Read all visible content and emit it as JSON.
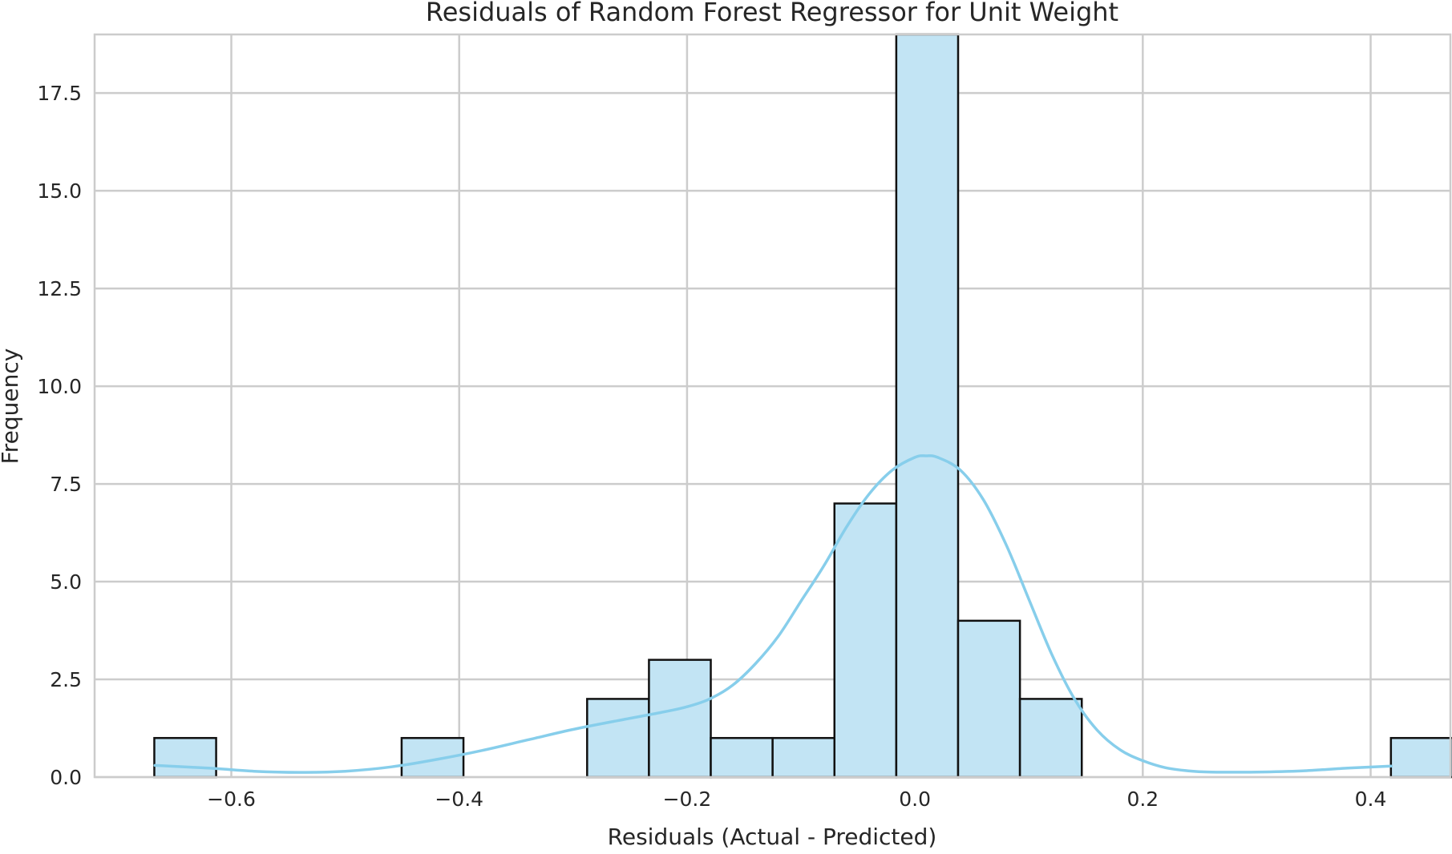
{
  "chart_data": {
    "type": "bar",
    "title": "Residuals of Random Forest Regressor for Unit Weight",
    "xlabel": "Residuals (Actual - Predicted)",
    "ylabel": "Frequency",
    "xlim": [
      -0.72,
      0.47
    ],
    "ylim": [
      0,
      19.0
    ],
    "grid": true,
    "x_ticks": [
      {
        "value": -0.6,
        "label": "−0.6"
      },
      {
        "value": -0.4,
        "label": "−0.4"
      },
      {
        "value": -0.2,
        "label": "−0.2"
      },
      {
        "value": 0.0,
        "label": "0.0"
      },
      {
        "value": 0.2,
        "label": "0.2"
      },
      {
        "value": 0.4,
        "label": "0.4"
      }
    ],
    "y_ticks": [
      {
        "value": 0.0,
        "label": "0.0"
      },
      {
        "value": 2.5,
        "label": "2.5"
      },
      {
        "value": 5.0,
        "label": "5.0"
      },
      {
        "value": 7.5,
        "label": "7.5"
      },
      {
        "value": 10.0,
        "label": "10.0"
      },
      {
        "value": 12.5,
        "label": "12.5"
      },
      {
        "value": 15.0,
        "label": "15.0"
      },
      {
        "value": 17.5,
        "label": "17.5"
      }
    ],
    "bin_start": -0.6676,
    "bin_width": 0.05427,
    "counts": [
      1,
      0,
      0,
      0,
      1,
      0,
      0,
      2,
      3,
      1,
      1,
      7,
      19,
      4,
      2,
      0,
      0,
      0,
      0,
      0,
      1
    ],
    "kde": {
      "x": [
        -0.667,
        -0.62,
        -0.58,
        -0.54,
        -0.5,
        -0.46,
        -0.42,
        -0.38,
        -0.34,
        -0.3,
        -0.26,
        -0.22,
        -0.2,
        -0.18,
        -0.16,
        -0.14,
        -0.12,
        -0.1,
        -0.08,
        -0.06,
        -0.04,
        -0.02,
        0.0,
        0.01,
        0.02,
        0.04,
        0.06,
        0.08,
        0.1,
        0.12,
        0.14,
        0.16,
        0.18,
        0.2,
        0.22,
        0.24,
        0.26,
        0.3,
        0.34,
        0.38,
        0.418
      ],
      "y": [
        0.3,
        0.23,
        0.15,
        0.12,
        0.15,
        0.26,
        0.45,
        0.68,
        0.95,
        1.22,
        1.45,
        1.67,
        1.8,
        2.0,
        2.35,
        2.9,
        3.6,
        4.5,
        5.4,
        6.4,
        7.25,
        7.85,
        8.18,
        8.22,
        8.18,
        7.85,
        7.1,
        5.95,
        4.55,
        3.15,
        2.0,
        1.2,
        0.7,
        0.42,
        0.24,
        0.16,
        0.13,
        0.13,
        0.16,
        0.23,
        0.28
      ]
    },
    "colors": {
      "bar_fill": "#c2e4f4",
      "bar_edge": "#111111",
      "kde_line": "#87ceeb",
      "grid": "#cccccc",
      "frame": "#cccccc"
    }
  }
}
